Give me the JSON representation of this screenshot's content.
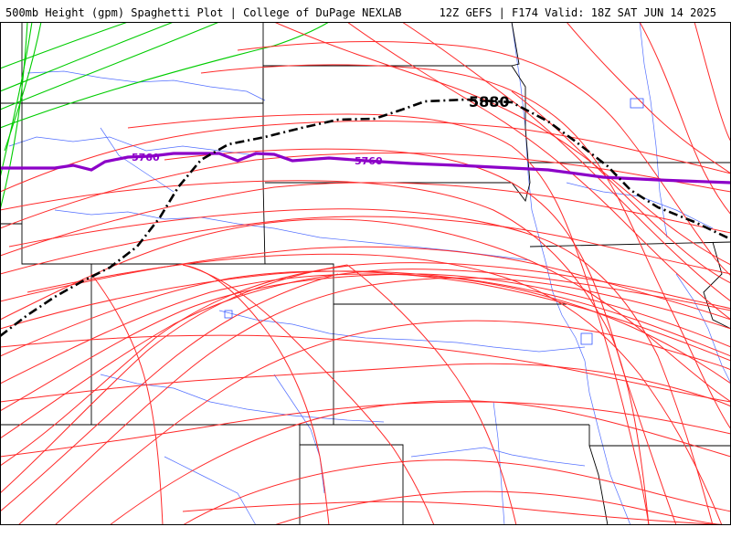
{
  "header": {
    "title": "500mb Height (gpm) Spaghetti Plot | College of DuPage NEXLAB",
    "run_info": "12Z GEFS | F174 Valid: 18Z SAT JUN 14 2025"
  },
  "map": {
    "contours": [
      {
        "value": 5760,
        "label": "5760",
        "color": "#8c00c8",
        "style": "solid",
        "labels_shown": 2
      },
      {
        "value": 5880,
        "label": "5880",
        "color": "#000000",
        "style": "dash-dot"
      }
    ],
    "member_colors": {
      "red": "#ff2a2a",
      "green": "#00cc00",
      "rivers": "#3355ff",
      "borders": "#000000"
    }
  }
}
